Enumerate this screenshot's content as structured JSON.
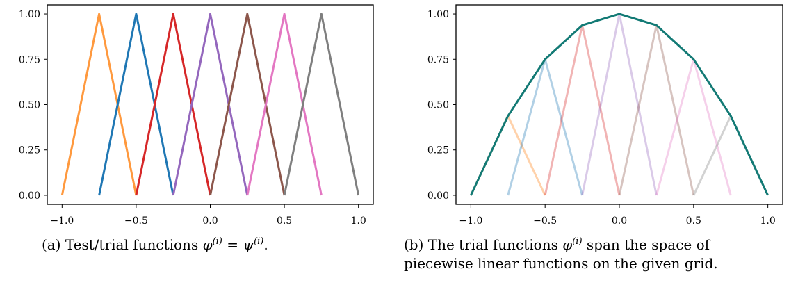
{
  "chart_data": [
    {
      "type": "line",
      "panel": "a",
      "title": "",
      "xlabel": "",
      "ylabel": "",
      "xlim": [
        -1.1,
        1.1
      ],
      "ylim": [
        -0.05,
        1.05
      ],
      "xticks": [
        -1.0,
        -0.5,
        0.0,
        0.5,
        1.0
      ],
      "xtick_labels": [
        "−1.0",
        "−0.5",
        "0.0",
        "0.5",
        "1.0"
      ],
      "yticks": [
        0.0,
        0.25,
        0.5,
        0.75,
        1.0
      ],
      "ytick_labels": [
        "0.00",
        "0.25",
        "0.50",
        "0.75",
        "1.00"
      ],
      "grid": false,
      "series": [
        {
          "color": "#ff7f0e",
          "opacity": 0.8,
          "x": [
            -1.0,
            -0.75,
            -0.5
          ],
          "y": [
            0,
            1,
            0
          ]
        },
        {
          "color": "#1f77b4",
          "opacity": 1.0,
          "x": [
            -0.75,
            -0.5,
            -0.25
          ],
          "y": [
            0,
            1,
            0
          ]
        },
        {
          "color": "#d62728",
          "opacity": 1.0,
          "x": [
            -0.5,
            -0.25,
            0.0
          ],
          "y": [
            0,
            1,
            0
          ]
        },
        {
          "color": "#9467bd",
          "opacity": 1.0,
          "x": [
            -0.25,
            0.0,
            0.25
          ],
          "y": [
            0,
            1,
            0
          ]
        },
        {
          "color": "#8c564b",
          "opacity": 1.0,
          "x": [
            0.0,
            0.25,
            0.5
          ],
          "y": [
            0,
            1,
            0
          ]
        },
        {
          "color": "#e377c2",
          "opacity": 1.0,
          "x": [
            0.25,
            0.5,
            0.75
          ],
          "y": [
            0,
            1,
            0
          ]
        },
        {
          "color": "#7f7f7f",
          "opacity": 1.0,
          "x": [
            0.5,
            0.75,
            1.0
          ],
          "y": [
            0,
            1,
            0
          ]
        }
      ]
    },
    {
      "type": "line",
      "panel": "b",
      "title": "",
      "xlabel": "",
      "ylabel": "",
      "xlim": [
        -1.1,
        1.1
      ],
      "ylim": [
        -0.05,
        1.05
      ],
      "xticks": [
        -1.0,
        -0.5,
        0.0,
        0.5,
        1.0
      ],
      "xtick_labels": [
        "−1.0",
        "−0.5",
        "0.0",
        "0.5",
        "1.0"
      ],
      "yticks": [
        0.0,
        0.25,
        0.5,
        0.75,
        1.0
      ],
      "ytick_labels": [
        "0.00",
        "0.25",
        "0.50",
        "0.75",
        "1.00"
      ],
      "grid": false,
      "series": [
        {
          "color": "#ff7f0e",
          "opacity": 0.35,
          "x": [
            -1.0,
            -0.75,
            -0.5
          ],
          "y": [
            0,
            0.4375,
            0
          ]
        },
        {
          "color": "#1f77b4",
          "opacity": 0.35,
          "x": [
            -0.75,
            -0.5,
            -0.25
          ],
          "y": [
            0,
            0.75,
            0
          ]
        },
        {
          "color": "#d62728",
          "opacity": 0.35,
          "x": [
            -0.5,
            -0.25,
            0.0
          ],
          "y": [
            0,
            0.9375,
            0
          ]
        },
        {
          "color": "#9467bd",
          "opacity": 0.35,
          "x": [
            -0.25,
            0.0,
            0.25
          ],
          "y": [
            0,
            1.0,
            0
          ]
        },
        {
          "color": "#8c564b",
          "opacity": 0.35,
          "x": [
            0.0,
            0.25,
            0.5
          ],
          "y": [
            0,
            0.9375,
            0
          ]
        },
        {
          "color": "#e377c2",
          "opacity": 0.35,
          "x": [
            0.25,
            0.5,
            0.75
          ],
          "y": [
            0,
            0.75,
            0
          ]
        },
        {
          "color": "#7f7f7f",
          "opacity": 0.35,
          "x": [
            0.5,
            0.75,
            1.0
          ],
          "y": [
            0,
            0.4375,
            0
          ]
        },
        {
          "color": "#137a75",
          "opacity": 1.0,
          "x": [
            -1.0,
            -0.75,
            -0.5,
            -0.25,
            0.0,
            0.25,
            0.5,
            0.75,
            1.0
          ],
          "y": [
            0,
            0.4375,
            0.75,
            0.9375,
            1.0,
            0.9375,
            0.75,
            0.4375,
            0
          ]
        }
      ]
    }
  ],
  "captions": {
    "a": {
      "prefix": "(a) Test/trial functions ",
      "phi": "φ",
      "phi_sup": "(i)",
      "eq": " = ",
      "psi": "ψ",
      "psi_sup": "(i)",
      "suffix": "."
    },
    "b": {
      "prefix": "(b) The trial functions ",
      "phi": "φ",
      "phi_sup": "(i)",
      "suffix_line1": " span the space of",
      "line2": "piecewise linear functions on the given grid."
    }
  }
}
